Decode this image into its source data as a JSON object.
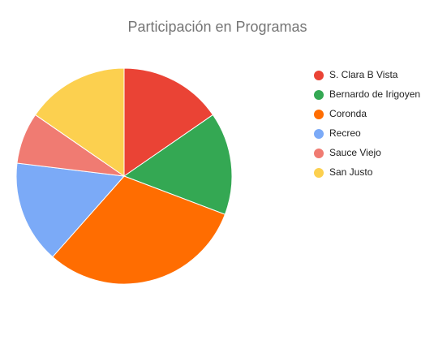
{
  "chart_data": {
    "type": "pie",
    "title": "Participación en Programas",
    "categories": [
      "S. Clara B Vista",
      "Bernardo de Irigoyen",
      "Coronda",
      "Recreo",
      "Sauce Viejo",
      "San Justo"
    ],
    "values": [
      2,
      2,
      4,
      2,
      1,
      2
    ],
    "colors": [
      "#ea4335",
      "#34a853",
      "#ff6d01",
      "#7baaf7",
      "#f07b72",
      "#fcd04f"
    ],
    "legend": "right"
  }
}
